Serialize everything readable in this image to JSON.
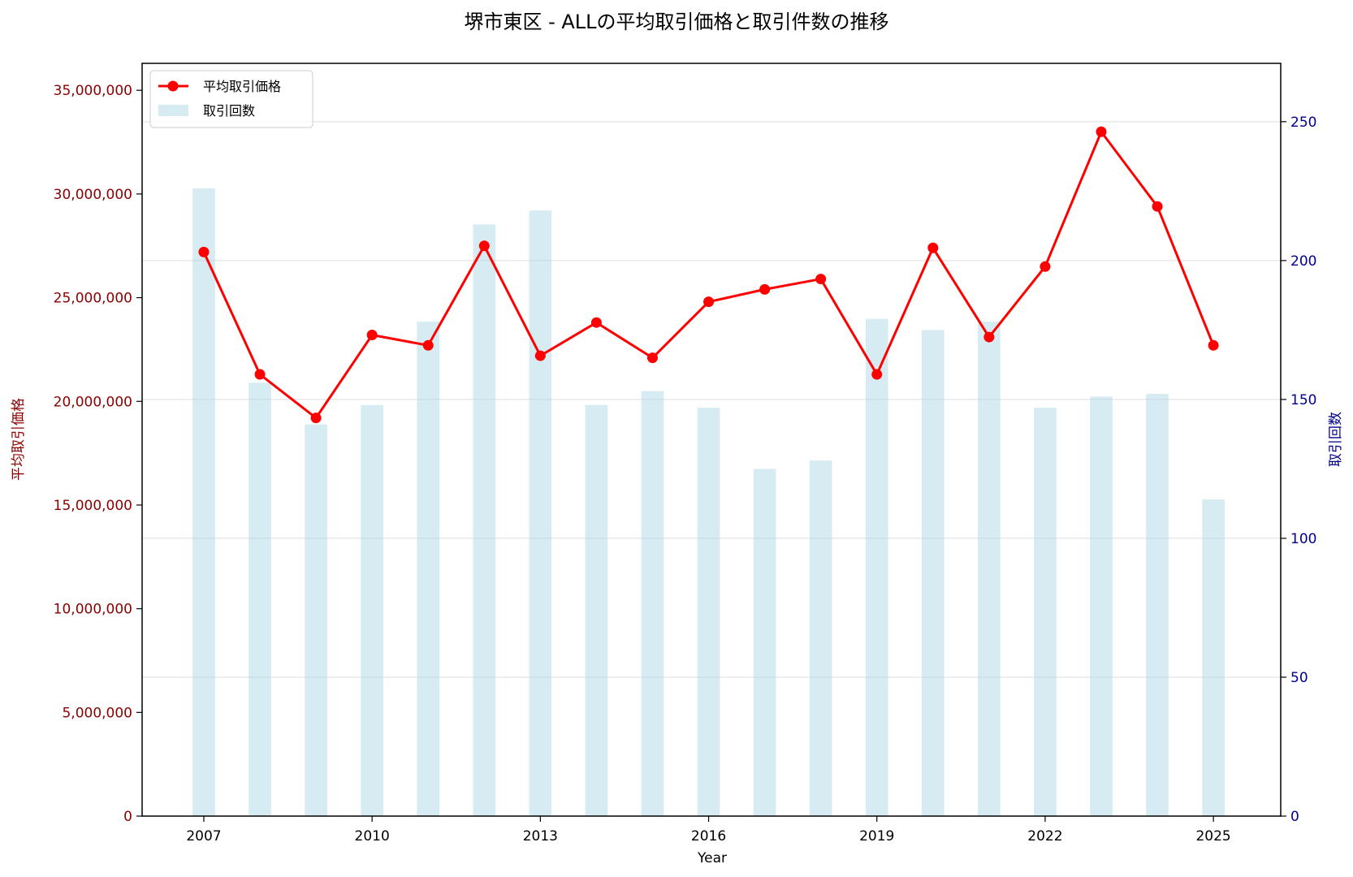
{
  "chart_data": {
    "type": "bar+line",
    "title": "堺市東区 - ALLの平均取引価格と取引件数の推移",
    "xlabel": "Year",
    "ylabel_left": "平均取引価格",
    "ylabel_right": "取引回数",
    "x": [
      2007,
      2008,
      2009,
      2010,
      2011,
      2012,
      2013,
      2014,
      2015,
      2016,
      2017,
      2018,
      2019,
      2020,
      2021,
      2022,
      2023,
      2024,
      2025
    ],
    "x_ticks": [
      "2007",
      "2010",
      "2013",
      "2016",
      "2019",
      "2022",
      "2025"
    ],
    "xlim": [
      2005.9,
      2026.2
    ],
    "y_left_lim": [
      0,
      36300000
    ],
    "y_left_ticks": [
      "0",
      "5,000,000",
      "10,000,000",
      "15,000,000",
      "20,000,000",
      "25,000,000",
      "30,000,000",
      "35,000,000"
    ],
    "y_left_tick_values": [
      0,
      5000000,
      10000000,
      15000000,
      20000000,
      25000000,
      30000000,
      35000000
    ],
    "y_right_lim": [
      0,
      271
    ],
    "y_right_ticks": [
      "0",
      "50",
      "100",
      "150",
      "200",
      "250"
    ],
    "y_right_tick_values": [
      0,
      50,
      100,
      150,
      200,
      250
    ],
    "grid": "horizontal on right axis",
    "legend_position": "top-left",
    "series": [
      {
        "name": "平均取引価格",
        "type": "line",
        "axis": "left",
        "color": "#ff0000",
        "values": [
          27200000,
          21300000,
          19200000,
          23200000,
          22700000,
          27500000,
          22200000,
          23800000,
          22100000,
          24800000,
          25400000,
          25900000,
          21300000,
          27400000,
          23100000,
          26500000,
          33000000,
          29400000,
          22700000
        ]
      },
      {
        "name": "取引回数",
        "type": "bar",
        "axis": "right",
        "color": "#add8e6",
        "values": [
          226,
          156,
          141,
          148,
          178,
          213,
          218,
          148,
          153,
          147,
          125,
          128,
          179,
          175,
          178,
          147,
          151,
          152,
          114
        ]
      }
    ]
  }
}
